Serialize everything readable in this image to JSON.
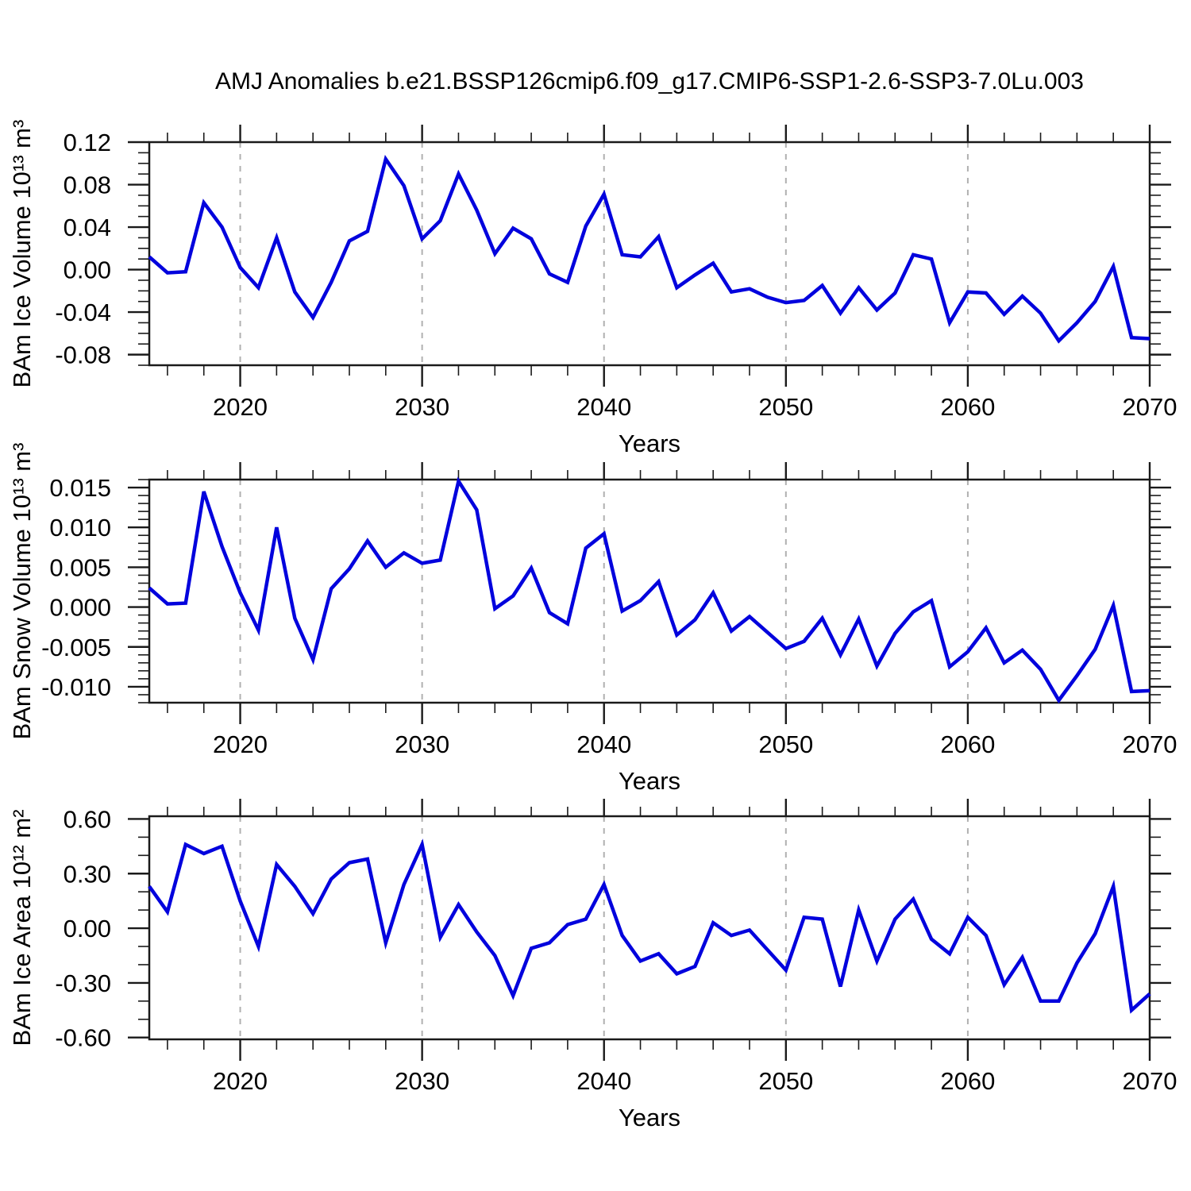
{
  "figure": {
    "title": "AMJ Anomalies b.e21.BSSP126cmip6.f09_g17.CMIP6-SSP1-2.6-SSP3-7.0Lu.003"
  },
  "style": {
    "line_color": "#0202dd",
    "grid_color": "#b0b0b0",
    "axis_color": "#1a1a1a",
    "background": "#ffffff"
  },
  "chart_data": [
    {
      "type": "line",
      "panel": "ice-volume",
      "xlabel": "Years",
      "ylabel": "BAm Ice Volume 10¹³ m³",
      "xlim": [
        2015,
        2070
      ],
      "ylim": [
        -0.09,
        0.12
      ],
      "xticks": [
        2020,
        2030,
        2040,
        2050,
        2060,
        2070
      ],
      "x_minor_step": 2,
      "grid_lines": [
        2020,
        2030,
        2040,
        2050,
        2060
      ],
      "yticks": [
        0.12,
        0.08,
        0.04,
        0.0,
        -0.04,
        -0.08
      ],
      "ytick_labels": [
        "0.12",
        "0.08",
        "0.04",
        "0.00",
        "-0.04",
        "-0.08"
      ],
      "y_minor_step": 0.01,
      "legend": "none",
      "grid": "vertical-dashed-decades",
      "years": [
        2015,
        2016,
        2017,
        2018,
        2019,
        2020,
        2021,
        2022,
        2023,
        2024,
        2025,
        2026,
        2027,
        2028,
        2029,
        2030,
        2031,
        2032,
        2033,
        2034,
        2035,
        2036,
        2037,
        2038,
        2039,
        2040,
        2041,
        2042,
        2043,
        2044,
        2045,
        2046,
        2047,
        2048,
        2049,
        2050,
        2051,
        2052,
        2053,
        2054,
        2055,
        2056,
        2057,
        2058,
        2059,
        2060,
        2061,
        2062,
        2063,
        2064,
        2065,
        2066,
        2067,
        2068,
        2069,
        2070
      ],
      "values": [
        0.012,
        -0.003,
        -0.002,
        0.063,
        0.04,
        0.002,
        -0.017,
        0.03,
        -0.021,
        -0.045,
        -0.012,
        0.027,
        0.036,
        0.104,
        0.079,
        0.029,
        0.046,
        0.09,
        0.056,
        0.015,
        0.039,
        0.029,
        -0.004,
        -0.012,
        0.041,
        0.071,
        0.014,
        0.012,
        0.031,
        -0.017,
        -0.005,
        0.006,
        -0.021,
        -0.018,
        -0.026,
        -0.031,
        -0.029,
        -0.015,
        -0.041,
        -0.017,
        -0.038,
        -0.022,
        0.014,
        0.01,
        -0.05,
        -0.021,
        -0.022,
        -0.042,
        -0.025,
        -0.041,
        -0.067,
        -0.05,
        -0.03,
        0.003,
        -0.064,
        -0.065
      ]
    },
    {
      "type": "line",
      "panel": "snow-volume",
      "xlabel": "Years",
      "ylabel": "BAm Snow Volume 10¹³ m³",
      "xlim": [
        2015,
        2070
      ],
      "ylim": [
        -0.012,
        0.016
      ],
      "xticks": [
        2020,
        2030,
        2040,
        2050,
        2060,
        2070
      ],
      "x_minor_step": 2,
      "grid_lines": [
        2020,
        2030,
        2040,
        2050,
        2060
      ],
      "yticks": [
        0.015,
        0.01,
        0.005,
        0.0,
        -0.005,
        -0.01
      ],
      "ytick_labels": [
        "0.015",
        "0.010",
        "0.005",
        "0.000",
        "-0.005",
        "-0.010"
      ],
      "y_minor_step": 0.001,
      "legend": "none",
      "grid": "vertical-dashed-decades",
      "years": [
        2015,
        2016,
        2017,
        2018,
        2019,
        2020,
        2021,
        2022,
        2023,
        2024,
        2025,
        2026,
        2027,
        2028,
        2029,
        2030,
        2031,
        2032,
        2033,
        2034,
        2035,
        2036,
        2037,
        2038,
        2039,
        2040,
        2041,
        2042,
        2043,
        2044,
        2045,
        2046,
        2047,
        2048,
        2049,
        2050,
        2051,
        2052,
        2053,
        2054,
        2055,
        2056,
        2057,
        2058,
        2059,
        2060,
        2061,
        2062,
        2063,
        2064,
        2065,
        2066,
        2067,
        2068,
        2069,
        2070
      ],
      "values": [
        0.0024,
        0.0004,
        0.0005,
        0.0145,
        0.0076,
        0.0018,
        -0.0029,
        0.01,
        -0.0014,
        -0.0066,
        0.0023,
        0.0048,
        0.0083,
        0.005,
        0.0068,
        0.0055,
        0.0059,
        0.0158,
        0.0122,
        -0.0002,
        0.0014,
        0.0049,
        -0.0007,
        -0.0021,
        0.0074,
        0.0092,
        -0.0005,
        0.0008,
        0.0032,
        -0.0035,
        -0.0016,
        0.0018,
        -0.003,
        -0.0012,
        -0.0032,
        -0.0052,
        -0.0043,
        -0.0014,
        -0.006,
        -0.0015,
        -0.0074,
        -0.0033,
        -0.0006,
        0.0008,
        -0.0075,
        -0.0056,
        -0.0026,
        -0.007,
        -0.0054,
        -0.0078,
        -0.0117,
        -0.0086,
        -0.0053,
        0.0002,
        -0.0106,
        -0.0105
      ]
    },
    {
      "type": "line",
      "panel": "ice-area",
      "xlabel": "Years",
      "ylabel": "BAm Ice Area 10¹² m²",
      "xlim": [
        2015,
        2070
      ],
      "ylim": [
        -0.61,
        0.615
      ],
      "xticks": [
        2020,
        2030,
        2040,
        2050,
        2060,
        2070
      ],
      "x_minor_step": 2,
      "grid_lines": [
        2020,
        2030,
        2040,
        2050,
        2060
      ],
      "yticks": [
        0.6,
        0.3,
        0.0,
        -0.3,
        -0.6
      ],
      "ytick_labels": [
        "0.60",
        "0.30",
        "0.00",
        "-0.30",
        "-0.60"
      ],
      "y_minor_step": 0.1,
      "legend": "none",
      "grid": "vertical-dashed-decades",
      "years": [
        2015,
        2016,
        2017,
        2018,
        2019,
        2020,
        2021,
        2022,
        2023,
        2024,
        2025,
        2026,
        2027,
        2028,
        2029,
        2030,
        2031,
        2032,
        2033,
        2034,
        2035,
        2036,
        2037,
        2038,
        2039,
        2040,
        2041,
        2042,
        2043,
        2044,
        2045,
        2046,
        2047,
        2048,
        2049,
        2050,
        2051,
        2052,
        2053,
        2054,
        2055,
        2056,
        2057,
        2058,
        2059,
        2060,
        2061,
        2062,
        2063,
        2064,
        2065,
        2066,
        2067,
        2068,
        2069,
        2070
      ],
      "values": [
        0.23,
        0.09,
        0.46,
        0.41,
        0.45,
        0.15,
        -0.1,
        0.35,
        0.23,
        0.08,
        0.27,
        0.36,
        0.38,
        -0.08,
        0.24,
        0.46,
        -0.05,
        0.13,
        -0.02,
        -0.15,
        -0.37,
        -0.11,
        -0.08,
        0.02,
        0.05,
        0.24,
        -0.04,
        -0.18,
        -0.14,
        -0.25,
        -0.21,
        0.03,
        -0.04,
        -0.01,
        -0.12,
        -0.23,
        0.06,
        0.05,
        -0.32,
        0.1,
        -0.18,
        0.05,
        0.16,
        -0.06,
        -0.14,
        0.06,
        -0.04,
        -0.31,
        -0.16,
        -0.4,
        -0.4,
        -0.19,
        -0.03,
        0.23,
        -0.45,
        -0.36
      ]
    }
  ]
}
